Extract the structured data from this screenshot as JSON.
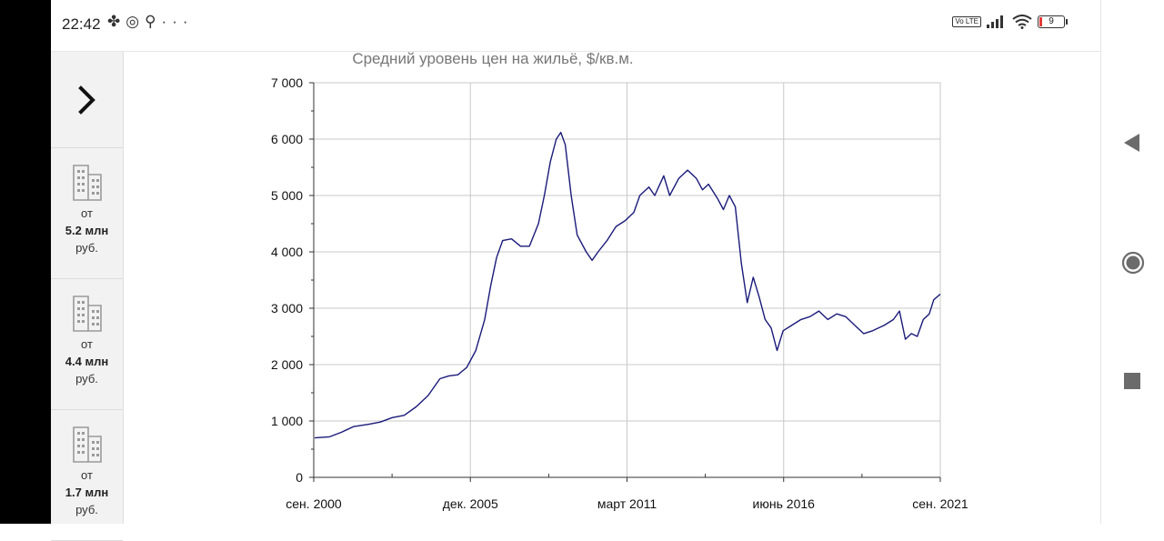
{
  "status_bar": {
    "time": "22:42",
    "left_icons": [
      "pinwheel-icon",
      "timer-icon",
      "usb-icon",
      "more-icon"
    ],
    "more_label": "···",
    "volte_label": "Vo LTE",
    "battery_level": "9"
  },
  "sidebar": {
    "toggle_icon": "chevron-right-icon",
    "listings": [
      {
        "from": "от",
        "price": "5.2 млн",
        "currency": "руб.",
        "icon": "building-icon"
      },
      {
        "from": "от",
        "price": "4.4 млн",
        "currency": "руб.",
        "icon": "building-icon"
      },
      {
        "from": "от",
        "price": "1.7 млн",
        "currency": "руб.",
        "icon": "building-icon"
      }
    ]
  },
  "chart_data": {
    "type": "line",
    "title": "Средний уровень цен на жильё, $/кв.м.",
    "xlabel": "",
    "ylabel": "",
    "ylim": [
      0,
      7000
    ],
    "yticks": [
      {
        "value": 0,
        "label": "0"
      },
      {
        "value": 1000,
        "label": "1 000"
      },
      {
        "value": 2000,
        "label": "2 000"
      },
      {
        "value": 3000,
        "label": "3 000"
      },
      {
        "value": 4000,
        "label": "4 000"
      },
      {
        "value": 5000,
        "label": "5 000"
      },
      {
        "value": 6000,
        "label": "6 000"
      },
      {
        "value": 7000,
        "label": "7 000"
      }
    ],
    "xlim": [
      2000.67,
      2021.67
    ],
    "xticks": [
      {
        "value": 2000.67,
        "label": "сен. 2000"
      },
      {
        "value": 2005.92,
        "label": "дек. 2005"
      },
      {
        "value": 2011.17,
        "label": "март 2011"
      },
      {
        "value": 2016.42,
        "label": "июнь 2016"
      },
      {
        "value": 2021.67,
        "label": "сен. 2021"
      }
    ],
    "grid": true,
    "line_color": "#1a1a7a",
    "series": [
      {
        "points": [
          [
            2000.7,
            700
          ],
          [
            2001.2,
            720
          ],
          [
            2001.6,
            800
          ],
          [
            2002.0,
            900
          ],
          [
            2002.5,
            940
          ],
          [
            2002.9,
            980
          ],
          [
            2003.3,
            1060
          ],
          [
            2003.7,
            1100
          ],
          [
            2004.1,
            1250
          ],
          [
            2004.5,
            1450
          ],
          [
            2004.9,
            1750
          ],
          [
            2005.2,
            1800
          ],
          [
            2005.5,
            1820
          ],
          [
            2005.8,
            1950
          ],
          [
            2006.1,
            2250
          ],
          [
            2006.4,
            2800
          ],
          [
            2006.6,
            3400
          ],
          [
            2006.8,
            3900
          ],
          [
            2007.0,
            4200
          ],
          [
            2007.3,
            4230
          ],
          [
            2007.6,
            4100
          ],
          [
            2007.9,
            4100
          ],
          [
            2008.2,
            4500
          ],
          [
            2008.4,
            5000
          ],
          [
            2008.6,
            5600
          ],
          [
            2008.8,
            6000
          ],
          [
            2008.95,
            6120
          ],
          [
            2009.1,
            5900
          ],
          [
            2009.3,
            5000
          ],
          [
            2009.5,
            4300
          ],
          [
            2009.8,
            4000
          ],
          [
            2010.0,
            3850
          ],
          [
            2010.2,
            4000
          ],
          [
            2010.5,
            4200
          ],
          [
            2010.8,
            4450
          ],
          [
            2011.1,
            4550
          ],
          [
            2011.4,
            4700
          ],
          [
            2011.6,
            5000
          ],
          [
            2011.9,
            5150
          ],
          [
            2012.1,
            5000
          ],
          [
            2012.4,
            5350
          ],
          [
            2012.6,
            5000
          ],
          [
            2012.9,
            5300
          ],
          [
            2013.2,
            5450
          ],
          [
            2013.5,
            5300
          ],
          [
            2013.7,
            5100
          ],
          [
            2013.9,
            5200
          ],
          [
            2014.2,
            4950
          ],
          [
            2014.4,
            4750
          ],
          [
            2014.6,
            5000
          ],
          [
            2014.8,
            4800
          ],
          [
            2015.0,
            3800
          ],
          [
            2015.2,
            3100
          ],
          [
            2015.4,
            3550
          ],
          [
            2015.6,
            3200
          ],
          [
            2015.8,
            2800
          ],
          [
            2016.0,
            2650
          ],
          [
            2016.2,
            2250
          ],
          [
            2016.4,
            2600
          ],
          [
            2016.7,
            2700
          ],
          [
            2017.0,
            2800
          ],
          [
            2017.3,
            2850
          ],
          [
            2017.6,
            2950
          ],
          [
            2017.9,
            2800
          ],
          [
            2018.2,
            2900
          ],
          [
            2018.5,
            2850
          ],
          [
            2018.8,
            2700
          ],
          [
            2019.1,
            2550
          ],
          [
            2019.4,
            2600
          ],
          [
            2019.8,
            2700
          ],
          [
            2020.1,
            2800
          ],
          [
            2020.3,
            2950
          ],
          [
            2020.5,
            2450
          ],
          [
            2020.7,
            2550
          ],
          [
            2020.9,
            2500
          ],
          [
            2021.1,
            2800
          ],
          [
            2021.3,
            2900
          ],
          [
            2021.45,
            3150
          ],
          [
            2021.67,
            3250
          ]
        ]
      }
    ]
  }
}
